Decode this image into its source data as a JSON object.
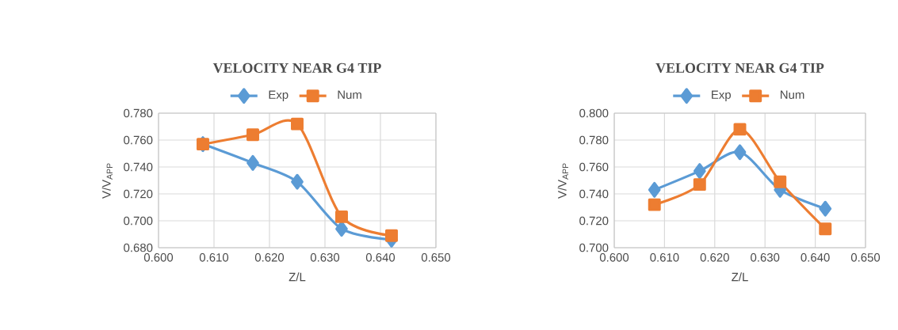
{
  "chart_data": [
    {
      "type": "line",
      "title": "VELOCITY NEAR G4 TIP",
      "xlabel": "Z/L",
      "ylabel": "V/V$_{APP}$",
      "x": [
        0.608,
        0.617,
        0.625,
        0.633,
        0.642
      ],
      "series": [
        {
          "name": "Exp",
          "color": "#5b9bd5",
          "marker": "diamond",
          "values": [
            0.757,
            0.743,
            0.729,
            0.694,
            0.686
          ]
        },
        {
          "name": "Num",
          "color": "#ed7d31",
          "marker": "square",
          "values": [
            0.757,
            0.764,
            0.772,
            0.703,
            0.689
          ]
        }
      ],
      "xlim": [
        0.6,
        0.65
      ],
      "xticks": [
        {
          "value": 0.6,
          "label": "0.600"
        },
        {
          "value": 0.61,
          "label": "0.610"
        },
        {
          "value": 0.62,
          "label": "0.620"
        },
        {
          "value": 0.63,
          "label": "0.630"
        },
        {
          "value": 0.64,
          "label": "0.640"
        },
        {
          "value": 0.65,
          "label": "0.650"
        }
      ],
      "ylim": [
        0.68,
        0.78
      ],
      "yticks": [
        {
          "value": 0.68,
          "label": "0.680"
        },
        {
          "value": 0.7,
          "label": "0.700"
        },
        {
          "value": 0.72,
          "label": "0.720"
        },
        {
          "value": 0.74,
          "label": "0.740"
        },
        {
          "value": 0.76,
          "label": "0.760"
        },
        {
          "value": 0.78,
          "label": "0.780"
        }
      ],
      "grid": true,
      "legend": "top"
    },
    {
      "type": "line",
      "title": "VELOCITY NEAR G4 TIP",
      "xlabel": "Z/L",
      "ylabel": "V/V$_{APP}$",
      "x": [
        0.608,
        0.617,
        0.625,
        0.633,
        0.642
      ],
      "series": [
        {
          "name": "Exp",
          "color": "#5b9bd5",
          "marker": "diamond",
          "values": [
            0.743,
            0.757,
            0.771,
            0.743,
            0.729
          ]
        },
        {
          "name": "Num",
          "color": "#ed7d31",
          "marker": "square",
          "values": [
            0.732,
            0.747,
            0.788,
            0.749,
            0.714
          ]
        }
      ],
      "xlim": [
        0.6,
        0.65
      ],
      "xticks": [
        {
          "value": 0.6,
          "label": "0.600"
        },
        {
          "value": 0.61,
          "label": "0.610"
        },
        {
          "value": 0.62,
          "label": "0.620"
        },
        {
          "value": 0.63,
          "label": "0.630"
        },
        {
          "value": 0.64,
          "label": "0.640"
        },
        {
          "value": 0.65,
          "label": "0.650"
        }
      ],
      "ylim": [
        0.7,
        0.8
      ],
      "yticks": [
        {
          "value": 0.7,
          "label": "0.700"
        },
        {
          "value": 0.72,
          "label": "0.720"
        },
        {
          "value": 0.74,
          "label": "0.740"
        },
        {
          "value": 0.76,
          "label": "0.760"
        },
        {
          "value": 0.78,
          "label": "0.780"
        },
        {
          "value": 0.8,
          "label": "0.800"
        }
      ],
      "grid": true,
      "legend": "top"
    }
  ]
}
